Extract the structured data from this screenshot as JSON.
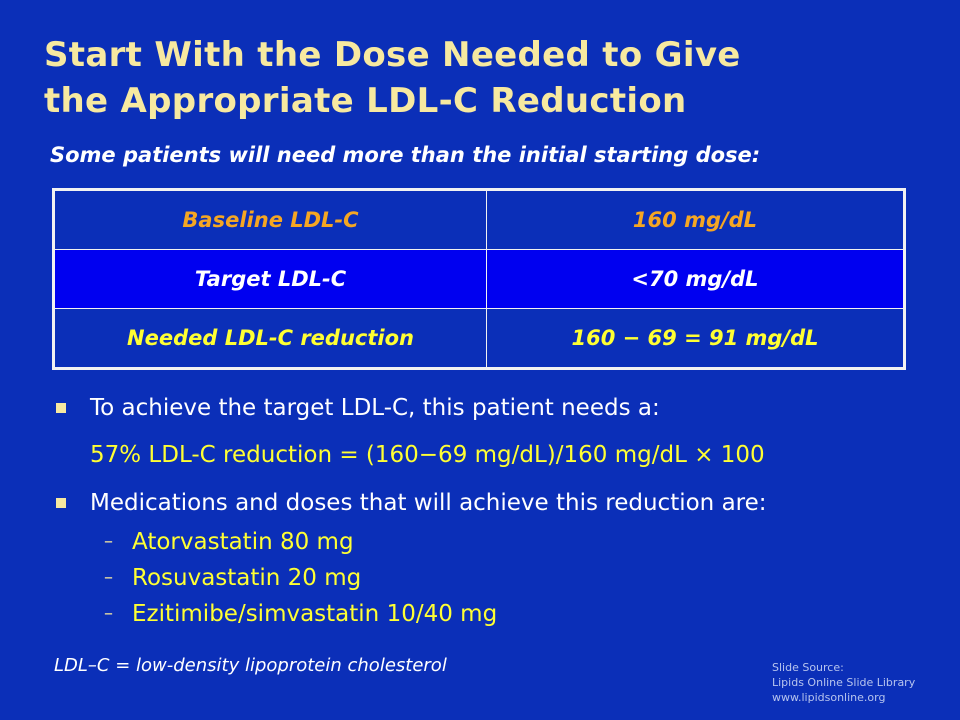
{
  "title": {
    "line1": "Start With the Dose Needed to Give",
    "line2": "the Appropriate LDL-C Reduction"
  },
  "subtitle": "Some patients will need more than the initial starting dose:",
  "table": {
    "rows": [
      {
        "label": "Baseline LDL-C",
        "value": "160 mg/dL"
      },
      {
        "label": "Target LDL-C",
        "value": "<70 mg/dL"
      },
      {
        "label": "Needed LDL-C reduction",
        "value": "160 − 69 = 91 mg/dL"
      }
    ]
  },
  "bullets": {
    "b1": "To achieve the target LDL-C, this patient needs a:",
    "formula": "57% LDL-C reduction = (160−69 mg/dL)/160 mg/dL × 100",
    "b2": "Medications and doses that will achieve this reduction are:",
    "dash": "–",
    "medications": [
      "Atorvastatin 80 mg",
      "Rosuvastatin 20 mg",
      "Ezitimibe/simvastatin 10/40 mg"
    ]
  },
  "footnote": "LDL–C = low-density lipoprotein cholesterol",
  "source": {
    "line1": "Slide Source:",
    "line2": "Lipids Online Slide Library",
    "line3": "www.lipidsonline.org"
  },
  "colors": {
    "background": "#0b2fb8",
    "title": "#f7e9a0",
    "highlight_row": "#0000f0",
    "baseline_text": "#f5a623",
    "yellow_text": "#ffff33"
  }
}
